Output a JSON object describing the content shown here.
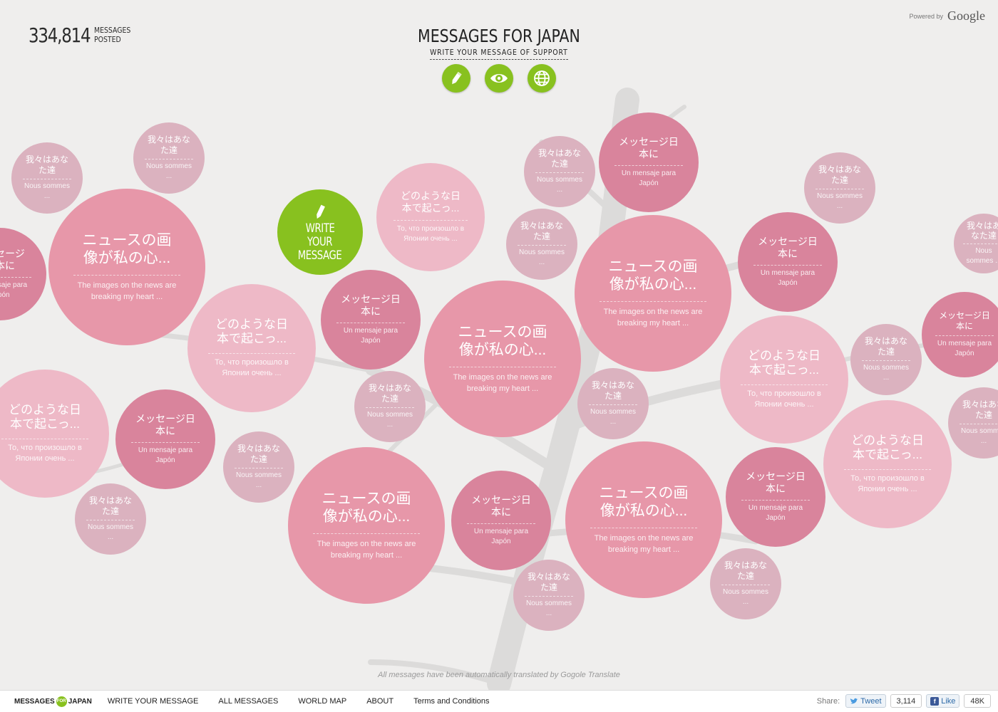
{
  "counter": {
    "number": "334,814",
    "label_line1": "MESSAGES",
    "label_line2": "POSTED"
  },
  "header": {
    "title": "MESSAGES FOR JAPAN",
    "subtitle": "WRITE YOUR MESSAGE OF SUPPORT"
  },
  "powered": {
    "label": "Powered by",
    "brand": "Google"
  },
  "actions": [
    {
      "name": "write-action-button",
      "icon": "pencil-icon"
    },
    {
      "name": "view-action-button",
      "icon": "eye-icon"
    },
    {
      "name": "world-action-button",
      "icon": "globe-icon"
    }
  ],
  "write_bubble": {
    "line1": "WRITE",
    "line2": "YOUR",
    "line3": "MESSAGE"
  },
  "messages": {
    "a": {
      "jp": "我々はあなた達",
      "tr": "Nous sommes ..."
    },
    "b": {
      "jp": "ニュースの画像が私の心...",
      "tr": "The images on the news are breaking my heart ..."
    },
    "c": {
      "jp": "どのような日本で起こっ...",
      "tr": "То, что произошло в Японии очень ..."
    },
    "d": {
      "jp": "メッセージ日本に",
      "tr": "Un mensaje para Japón"
    }
  },
  "bubbles": [
    {
      "t": "a",
      "c": "pale"
    },
    {
      "t": "a",
      "c": "pale"
    },
    {
      "t": "d",
      "c": "dark"
    },
    {
      "t": "b",
      "c": "mid"
    },
    {
      "t": "c",
      "c": "light"
    },
    {
      "t": "a",
      "c": "pale"
    },
    {
      "t": "d",
      "c": "dark"
    },
    {
      "t": "c",
      "c": "light"
    },
    {
      "t": "b",
      "c": "mid"
    },
    {
      "t": "a",
      "c": "pale"
    },
    {
      "t": "a",
      "c": "pale"
    },
    {
      "t": "d",
      "c": "dark"
    },
    {
      "t": "a",
      "c": "pale"
    },
    {
      "t": "b",
      "c": "mid"
    },
    {
      "t": "a",
      "c": "pale"
    },
    {
      "t": "a",
      "c": "pale"
    },
    {
      "t": "d",
      "c": "dark"
    },
    {
      "t": "c",
      "c": "light"
    },
    {
      "t": "a",
      "c": "pale"
    },
    {
      "t": "d",
      "c": "dark"
    },
    {
      "t": "c",
      "c": "light"
    },
    {
      "t": "a",
      "c": "pale"
    },
    {
      "t": "d",
      "c": "dark"
    },
    {
      "t": "a",
      "c": "pale"
    },
    {
      "t": "b",
      "c": "mid"
    },
    {
      "t": "a",
      "c": "pale"
    },
    {
      "t": "d",
      "c": "dark"
    },
    {
      "t": "b",
      "c": "mid"
    },
    {
      "t": "a",
      "c": "pale"
    },
    {
      "t": "d",
      "c": "dark"
    },
    {
      "t": "c",
      "c": "light"
    },
    {
      "t": "a",
      "c": "pale"
    },
    {
      "t": "a",
      "c": "pale"
    }
  ],
  "translate_note": "All messages have been automatically translated by Gogole Translate",
  "footer": {
    "logo_left": "MESSAGES",
    "logo_for": "FOR",
    "logo_right": "JAPAN",
    "links": [
      "WRITE YOUR MESSAGE",
      "ALL MESSAGES",
      "WORLD MAP",
      "ABOUT",
      "Terms and Conditions"
    ],
    "share_label": "Share:",
    "tweet_label": "Tweet",
    "tweet_count": "3,114",
    "like_label": "Like",
    "like_count": "48K"
  },
  "colors": {
    "accent_green": "#88c11f",
    "bubble_dark": "#d9849c",
    "bubble_mid": "#e797a9",
    "bubble_light": "#eeb9c7",
    "bubble_pale": "#dbb2bf"
  }
}
